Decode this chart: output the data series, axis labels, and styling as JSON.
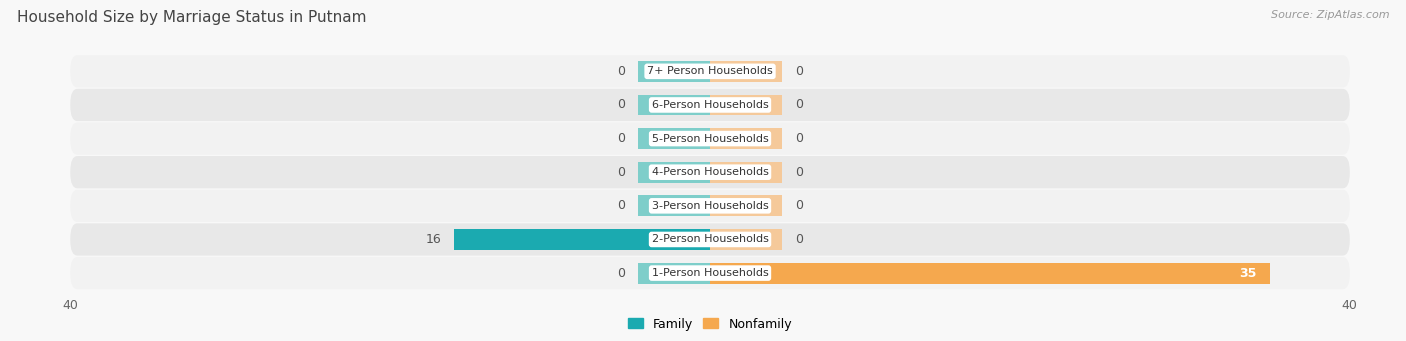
{
  "title": "Household Size by Marriage Status in Putnam",
  "source": "Source: ZipAtlas.com",
  "categories": [
    "7+ Person Households",
    "6-Person Households",
    "5-Person Households",
    "4-Person Households",
    "3-Person Households",
    "2-Person Households",
    "1-Person Households"
  ],
  "family_values": [
    0,
    0,
    0,
    0,
    0,
    16,
    0
  ],
  "nonfamily_values": [
    0,
    0,
    0,
    0,
    0,
    0,
    35
  ],
  "family_color_stub": "#7ececa",
  "family_color_full": "#1baab0",
  "nonfamily_color_stub": "#f5c99a",
  "nonfamily_color_full": "#f5a84e",
  "row_bg_light": "#f2f2f2",
  "row_bg_dark": "#e8e8e8",
  "label_bg_color": "#ffffff",
  "xlim": 40,
  "stub_size": 4.5,
  "bar_height": 0.62,
  "background_color": "#f8f8f8",
  "title_fontsize": 11,
  "source_fontsize": 8,
  "tick_fontsize": 9,
  "label_fontsize": 8,
  "value_fontsize": 9
}
